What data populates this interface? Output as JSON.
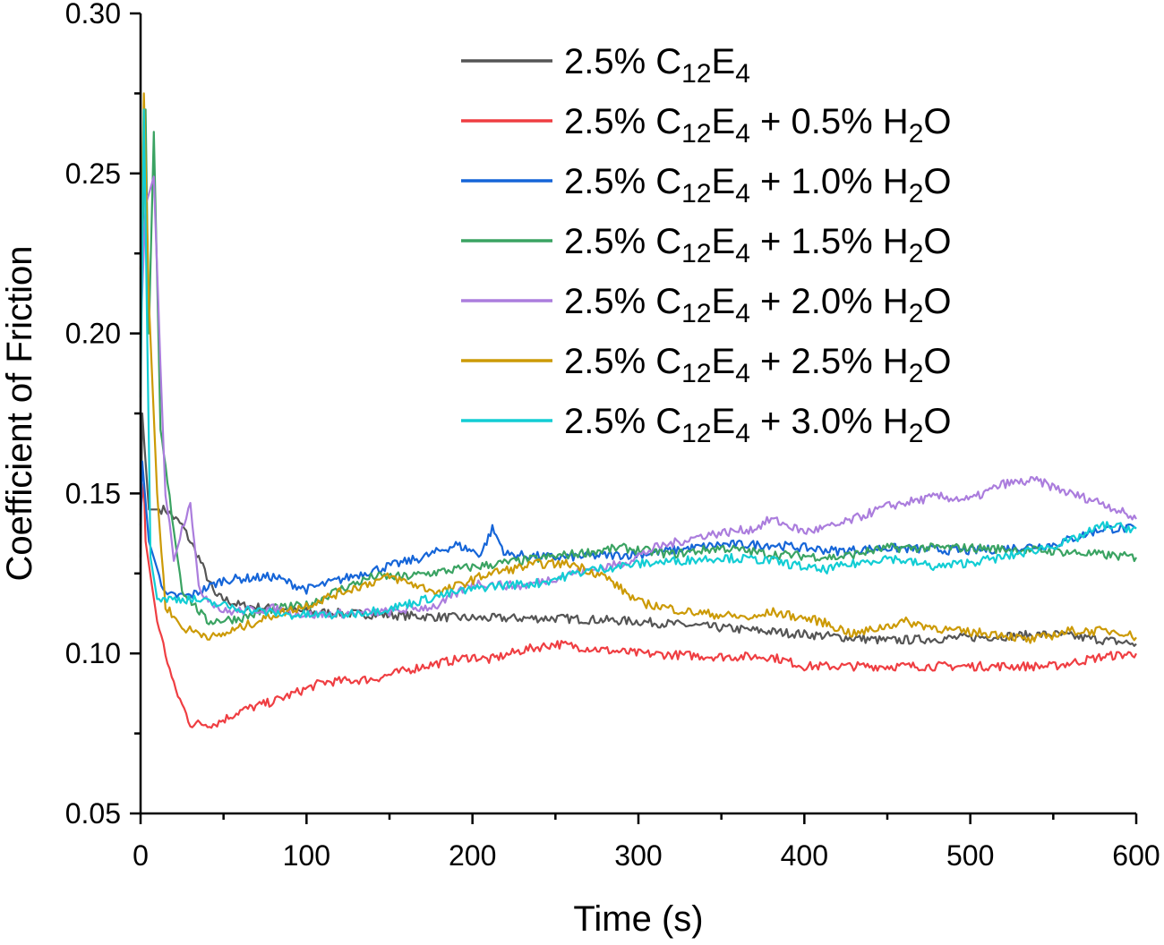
{
  "chart_data": {
    "type": "line",
    "title": "",
    "xlabel": "Time (s)",
    "ylabel": "Coefficient of Friction",
    "xlim": [
      0,
      600
    ],
    "ylim": [
      0.05,
      0.3
    ],
    "xticks": [
      0,
      100,
      200,
      300,
      400,
      500,
      600
    ],
    "xtick_labels": [
      "0",
      "100",
      "200",
      "300",
      "400",
      "500",
      "600"
    ],
    "yticks": [
      0.05,
      0.1,
      0.15,
      0.2,
      0.25,
      0.3
    ],
    "ytick_labels": [
      "0.05",
      "0.10",
      "0.15",
      "0.20",
      "0.25",
      "0.30"
    ],
    "grid": false,
    "legend_position": "top-right",
    "series": [
      {
        "name": "2.5% C12E4",
        "color": "#555555",
        "x": [
          0,
          1,
          5,
          15,
          25,
          35,
          45,
          60,
          100,
          150,
          200,
          250,
          300,
          350,
          400,
          450,
          500,
          550,
          600
        ],
        "y": [
          0.13,
          0.175,
          0.145,
          0.145,
          0.14,
          0.13,
          0.118,
          0.115,
          0.113,
          0.112,
          0.111,
          0.111,
          0.11,
          0.108,
          0.106,
          0.104,
          0.105,
          0.106,
          0.103
        ]
      },
      {
        "name": "2.5% C12E4 + 0.5% H2O",
        "color": "#ef3e42",
        "x": [
          0,
          2,
          3,
          10,
          20,
          30,
          45,
          60,
          80,
          110,
          140,
          170,
          200,
          210,
          230,
          250,
          280,
          300,
          350,
          380,
          400,
          450,
          500,
          550,
          580,
          600
        ],
        "y": [
          0.145,
          0.153,
          0.135,
          0.11,
          0.09,
          0.078,
          0.078,
          0.082,
          0.085,
          0.091,
          0.092,
          0.096,
          0.099,
          0.098,
          0.101,
          0.103,
          0.101,
          0.1,
          0.099,
          0.099,
          0.096,
          0.096,
          0.096,
          0.096,
          0.099,
          0.1
        ]
      },
      {
        "name": "2.5% C12E4 + 1.0% H2O",
        "color": "#1565d8",
        "x": [
          0,
          1,
          5,
          15,
          30,
          50,
          80,
          100,
          140,
          170,
          190,
          205,
          212,
          220,
          250,
          300,
          350,
          380,
          420,
          450,
          500,
          550,
          580,
          600
        ],
        "y": [
          0.14,
          0.16,
          0.135,
          0.118,
          0.118,
          0.123,
          0.124,
          0.12,
          0.126,
          0.13,
          0.134,
          0.131,
          0.139,
          0.131,
          0.13,
          0.131,
          0.134,
          0.134,
          0.132,
          0.133,
          0.132,
          0.134,
          0.139,
          0.139
        ]
      },
      {
        "name": "2.5% C12E4 + 1.5% H2O",
        "color": "#3aa362",
        "x": [
          0,
          3,
          5,
          8,
          12,
          15,
          25,
          40,
          60,
          80,
          100,
          120,
          140,
          160,
          200,
          230,
          260,
          290,
          320,
          350,
          380,
          420,
          450,
          500,
          550,
          600
        ],
        "y": [
          0.2,
          0.27,
          0.2,
          0.263,
          0.17,
          0.158,
          0.12,
          0.11,
          0.111,
          0.114,
          0.115,
          0.12,
          0.124,
          0.124,
          0.127,
          0.129,
          0.131,
          0.133,
          0.131,
          0.133,
          0.131,
          0.13,
          0.133,
          0.133,
          0.132,
          0.13
        ]
      },
      {
        "name": "2.5% C12E4 + 2.0% H2O",
        "color": "#ab7ddd",
        "x": [
          0,
          3,
          8,
          12,
          15,
          20,
          30,
          35,
          50,
          80,
          100,
          150,
          180,
          200,
          230,
          260,
          290,
          310,
          340,
          370,
          380,
          400,
          420,
          450,
          480,
          500,
          520,
          540,
          560,
          580,
          600
        ],
        "y": [
          0.2,
          0.24,
          0.249,
          0.19,
          0.15,
          0.13,
          0.148,
          0.12,
          0.113,
          0.114,
          0.112,
          0.113,
          0.115,
          0.122,
          0.121,
          0.125,
          0.128,
          0.133,
          0.137,
          0.139,
          0.142,
          0.138,
          0.14,
          0.146,
          0.149,
          0.148,
          0.153,
          0.154,
          0.15,
          0.147,
          0.142
        ]
      },
      {
        "name": "2.5% C12E4 + 2.5% H2O",
        "color": "#cc9a06",
        "x": [
          0,
          2,
          5,
          10,
          15,
          25,
          45,
          60,
          80,
          100,
          120,
          150,
          180,
          210,
          240,
          260,
          280,
          300,
          330,
          370,
          380,
          410,
          430,
          460,
          490,
          520,
          535,
          560,
          590,
          600
        ],
        "y": [
          0.22,
          0.275,
          0.21,
          0.15,
          0.115,
          0.108,
          0.105,
          0.108,
          0.112,
          0.115,
          0.119,
          0.124,
          0.119,
          0.125,
          0.128,
          0.128,
          0.124,
          0.116,
          0.113,
          0.111,
          0.113,
          0.11,
          0.106,
          0.11,
          0.107,
          0.106,
          0.104,
          0.107,
          0.107,
          0.105
        ]
      },
      {
        "name": "2.5% C12E4 + 3.0% H2O",
        "color": "#12cdd4",
        "x": [
          0,
          2,
          4,
          6,
          10,
          30,
          60,
          90,
          120,
          150,
          180,
          210,
          240,
          270,
          300,
          350,
          380,
          410,
          450,
          480,
          520,
          560,
          580,
          600
        ],
        "y": [
          0.18,
          0.27,
          0.2,
          0.13,
          0.117,
          0.117,
          0.114,
          0.112,
          0.112,
          0.114,
          0.118,
          0.121,
          0.122,
          0.126,
          0.128,
          0.13,
          0.129,
          0.126,
          0.13,
          0.127,
          0.13,
          0.135,
          0.14,
          0.139
        ]
      }
    ]
  }
}
